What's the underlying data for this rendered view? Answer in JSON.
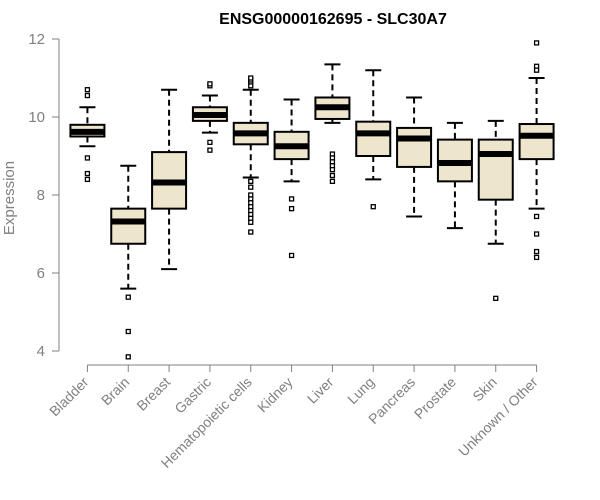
{
  "chart_data": {
    "type": "box",
    "title": "ENSG00000162695 - SLC30A7",
    "xlabel": "",
    "ylabel": "Expression",
    "ylim": [
      3.7,
      12.1
    ],
    "yticks": [
      4,
      6,
      8,
      10,
      12
    ],
    "box_fill": "#ede6cd",
    "axis_color": "#808080",
    "categories": [
      "Bladder",
      "Brain",
      "Breast",
      "Gastric",
      "Hematopoietic cells",
      "Kidney",
      "Liver",
      "Lung",
      "Pancreas",
      "Prostate",
      "Skin",
      "Unknown / Other"
    ],
    "boxes": [
      {
        "category": "Bladder",
        "whisker_low": 9.25,
        "q1": 9.5,
        "median": 9.62,
        "q3": 9.8,
        "whisker_high": 10.25,
        "outliers": [
          8.4,
          8.55,
          8.95,
          10.55,
          10.7
        ]
      },
      {
        "category": "Brain",
        "whisker_low": 5.6,
        "q1": 6.75,
        "median": 7.32,
        "q3": 7.65,
        "whisker_high": 8.75,
        "outliers": [
          5.38,
          4.5,
          3.85
        ]
      },
      {
        "category": "Breast",
        "whisker_low": 6.1,
        "q1": 7.65,
        "median": 8.32,
        "q3": 9.1,
        "whisker_high": 10.7,
        "outliers": []
      },
      {
        "category": "Gastric",
        "whisker_low": 9.6,
        "q1": 9.9,
        "median": 10.05,
        "q3": 10.25,
        "whisker_high": 10.55,
        "outliers": [
          10.8,
          10.85,
          9.35,
          9.15
        ]
      },
      {
        "category": "Hematopoietic cells",
        "whisker_low": 8.45,
        "q1": 9.3,
        "median": 9.58,
        "q3": 9.85,
        "whisker_high": 10.7,
        "outliers": [
          10.8,
          10.9,
          10.95,
          11.0,
          8.35,
          8.2,
          8.0,
          7.9,
          7.8,
          7.7,
          7.6,
          7.5,
          7.4,
          7.3,
          7.05
        ]
      },
      {
        "category": "Kidney",
        "whisker_low": 8.35,
        "q1": 8.92,
        "median": 9.25,
        "q3": 9.62,
        "whisker_high": 10.45,
        "outliers": [
          7.9,
          7.65,
          6.45
        ]
      },
      {
        "category": "Liver",
        "whisker_low": 9.85,
        "q1": 9.95,
        "median": 10.25,
        "q3": 10.5,
        "whisker_high": 11.35,
        "outliers": [
          9.05,
          8.95,
          8.85,
          8.75,
          8.65,
          8.5,
          8.35
        ]
      },
      {
        "category": "Lung",
        "whisker_low": 8.4,
        "q1": 9.0,
        "median": 9.58,
        "q3": 9.88,
        "whisker_high": 11.2,
        "outliers": [
          7.7
        ]
      },
      {
        "category": "Pancreas",
        "whisker_low": 7.45,
        "q1": 8.72,
        "median": 9.45,
        "q3": 9.72,
        "whisker_high": 10.5,
        "outliers": []
      },
      {
        "category": "Prostate",
        "whisker_low": 7.15,
        "q1": 8.35,
        "median": 8.82,
        "q3": 9.42,
        "whisker_high": 9.85,
        "outliers": []
      },
      {
        "category": "Skin",
        "whisker_low": 6.75,
        "q1": 7.88,
        "median": 9.05,
        "q3": 9.42,
        "whisker_high": 9.9,
        "outliers": [
          5.35
        ]
      },
      {
        "category": "Unknown / Other",
        "whisker_low": 7.65,
        "q1": 8.92,
        "median": 9.52,
        "q3": 9.82,
        "whisker_high": 11.0,
        "outliers": [
          11.9,
          11.3,
          11.2,
          7.45,
          7.0,
          6.55,
          6.4
        ]
      }
    ]
  }
}
